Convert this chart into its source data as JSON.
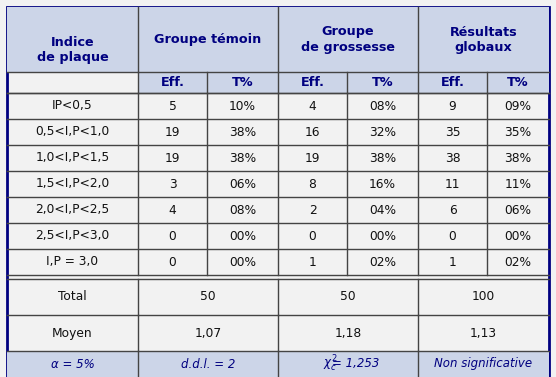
{
  "col_headers_row1": [
    "Indice\nde plaque",
    "Groupe témoin",
    "Groupe\nde grossesse",
    "Résultats\nglobaux"
  ],
  "col_headers_row2": [
    "Eff.",
    "T%",
    "Eff.",
    "T%",
    "Eff.",
    "T%"
  ],
  "rows": [
    [
      "IP<0,5",
      "5",
      "10%",
      "4",
      "08%",
      "9",
      "09%"
    ],
    [
      "0,5<I,P<1,0",
      "19",
      "38%",
      "16",
      "32%",
      "35",
      "35%"
    ],
    [
      "1,0<I,P<1,5",
      "19",
      "38%",
      "19",
      "38%",
      "38",
      "38%"
    ],
    [
      "1,5<I,P<2,0",
      "3",
      "06%",
      "8",
      "16%",
      "11",
      "11%"
    ],
    [
      "2,0<I,P<2,5",
      "4",
      "08%",
      "2",
      "04%",
      "6",
      "06%"
    ],
    [
      "2,5<I,P<3,0",
      "0",
      "00%",
      "0",
      "00%",
      "0",
      "00%"
    ],
    [
      "I,P = 3,0",
      "0",
      "00%",
      "1",
      "02%",
      "1",
      "02%"
    ]
  ],
  "total_row": [
    "Total",
    "50",
    "50",
    "100"
  ],
  "moyen_row": [
    "Moyen",
    "1,07",
    "1,18",
    "1,13"
  ],
  "footer": [
    "α = 5%",
    "d.d.l. = 2",
    "= 1,253",
    "Non significative"
  ],
  "bg_color": "#f2f2f2",
  "header_bg": "#ccd5e8",
  "footer_bg": "#ccd5e8",
  "border_color": "#444444",
  "navy": "#000080",
  "black": "#111111",
  "outer_border_color": "#000080",
  "outer_lw": 2.0,
  "inner_lw": 1.0
}
